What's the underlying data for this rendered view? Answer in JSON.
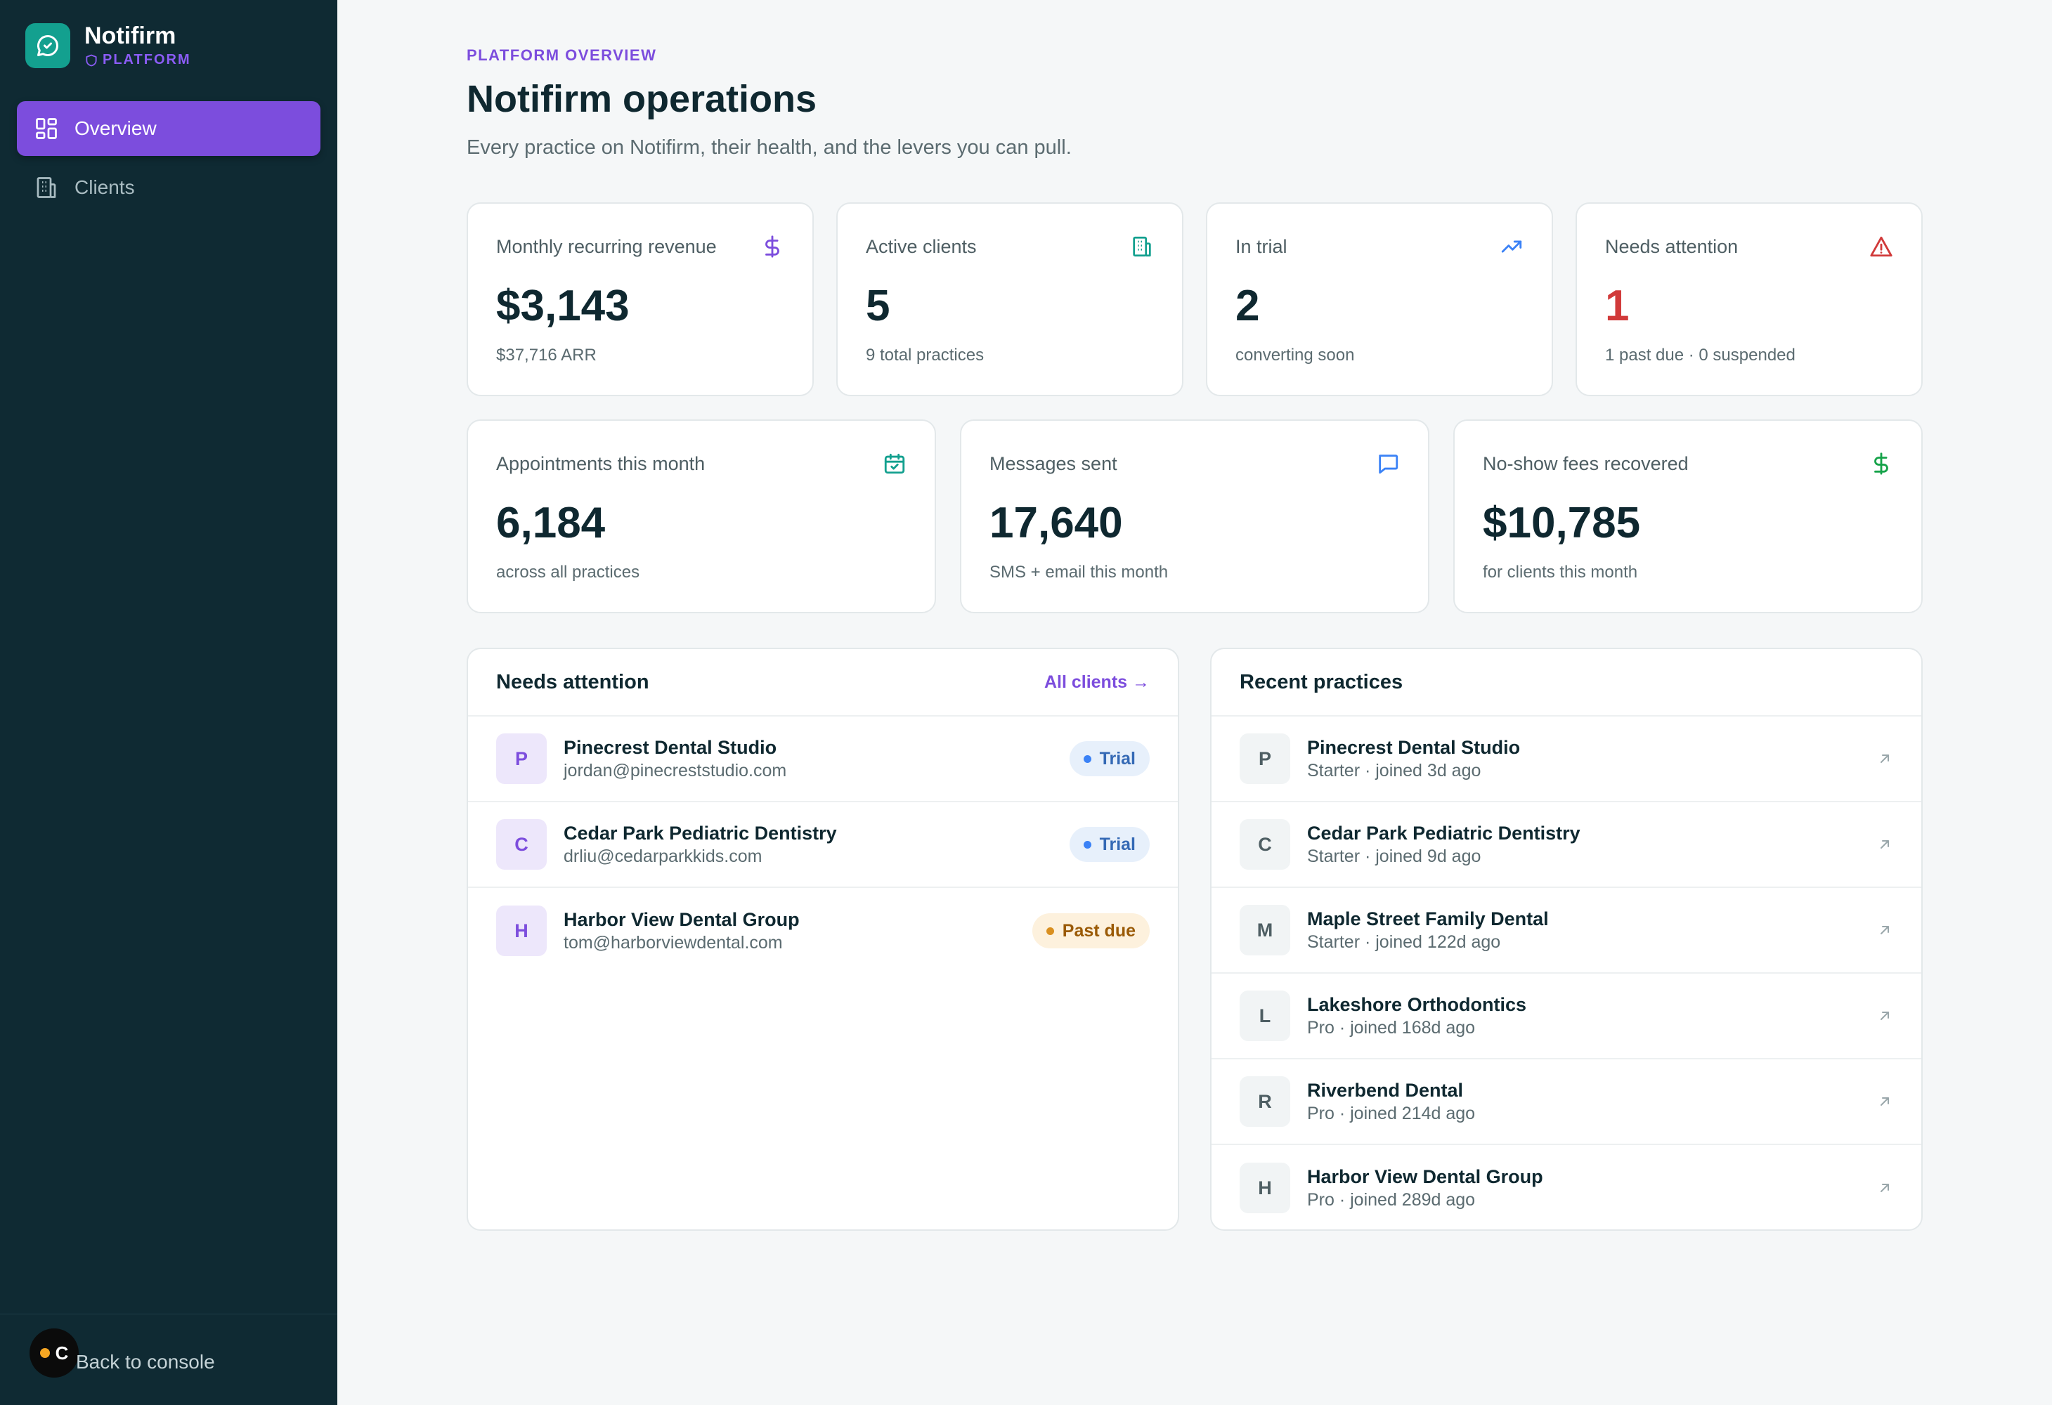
{
  "brand": {
    "name": "Notifirm",
    "sub": "PLATFORM"
  },
  "nav": [
    {
      "label": "Overview",
      "icon": "grid-icon",
      "active": true
    },
    {
      "label": "Clients",
      "icon": "building-icon",
      "active": false
    }
  ],
  "footer": {
    "avatar_letter": "C",
    "back_label": "Back to console"
  },
  "header": {
    "eyebrow": "PLATFORM OVERVIEW",
    "title": "Notifirm operations",
    "subtitle": "Every practice on Notifirm, their health, and the levers you can pull."
  },
  "stats_row1": [
    {
      "label": "Monthly recurring revenue",
      "value": "$3,143",
      "note": "$37,716 ARR",
      "icon": "dollar-icon",
      "color": "#7c4ddd"
    },
    {
      "label": "Active clients",
      "value": "5",
      "note": "9 total practices",
      "icon": "building-icon",
      "color": "#13a08f"
    },
    {
      "label": "In trial",
      "value": "2",
      "note": "converting soon",
      "icon": "trending-up-icon",
      "color": "#3b82f6"
    },
    {
      "label": "Needs attention",
      "value": "1",
      "note": "1 past due · 0 suspended",
      "icon": "alert-triangle-icon",
      "color": "#d13a3a"
    }
  ],
  "stats_row2": [
    {
      "label": "Appointments this month",
      "value": "6,184",
      "note": "across all practices",
      "icon": "calendar-check-icon",
      "color": "#13a08f"
    },
    {
      "label": "Messages sent",
      "value": "17,640",
      "note": "SMS + email this month",
      "icon": "message-icon",
      "color": "#3b82f6"
    },
    {
      "label": "No-show fees recovered",
      "value": "$10,785",
      "note": "for clients this month",
      "icon": "dollar-icon",
      "color": "#16a34a"
    }
  ],
  "attention": {
    "title": "Needs attention",
    "link": "All clients →",
    "rows": [
      {
        "initial": "P",
        "name": "Pinecrest Dental Studio",
        "email": "jordan@pinecreststudio.com",
        "status": "Trial"
      },
      {
        "initial": "C",
        "name": "Cedar Park Pediatric Dentistry",
        "email": "drliu@cedarparkkids.com",
        "status": "Trial"
      },
      {
        "initial": "H",
        "name": "Harbor View Dental Group",
        "email": "tom@harborviewdental.com",
        "status": "Past due"
      }
    ]
  },
  "recent": {
    "title": "Recent practices",
    "rows": [
      {
        "initial": "P",
        "name": "Pinecrest Dental Studio",
        "meta": "Starter · joined 3d ago"
      },
      {
        "initial": "C",
        "name": "Cedar Park Pediatric Dentistry",
        "meta": "Starter · joined 9d ago"
      },
      {
        "initial": "M",
        "name": "Maple Street Family Dental",
        "meta": "Starter · joined 122d ago"
      },
      {
        "initial": "L",
        "name": "Lakeshore Orthodontics",
        "meta": "Pro · joined 168d ago"
      },
      {
        "initial": "R",
        "name": "Riverbend Dental",
        "meta": "Pro · joined 214d ago"
      },
      {
        "initial": "H",
        "name": "Harbor View Dental Group",
        "meta": "Pro · joined 289d ago"
      }
    ]
  }
}
